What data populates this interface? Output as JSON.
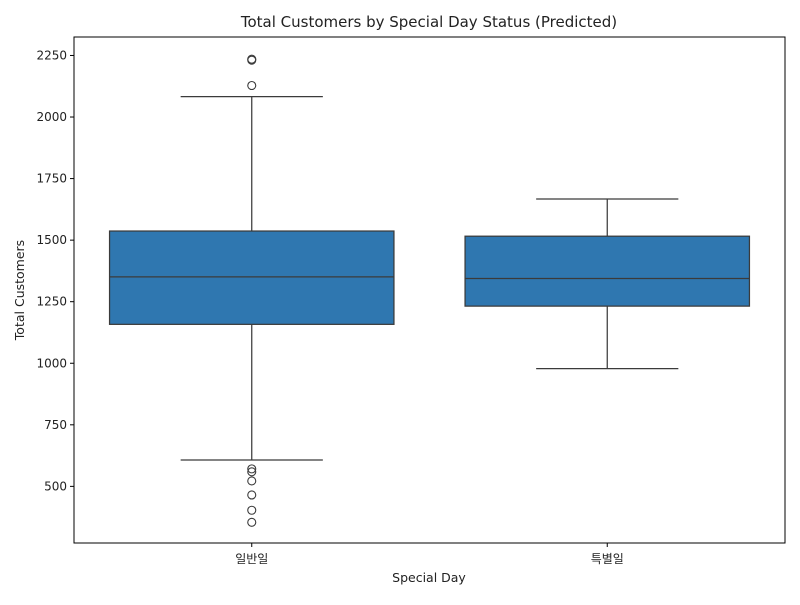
{
  "chart_data": {
    "type": "box",
    "title": "Total Customers by Special Day Status (Predicted)",
    "xlabel": "Special Day",
    "ylabel": "Total Customers",
    "ylim": [
      270,
      2325
    ],
    "yticks": [
      500,
      750,
      1000,
      1250,
      1500,
      1750,
      2000,
      2250
    ],
    "grid": false,
    "legend": "none",
    "box_color": "#2f77b0",
    "line_color": "#3b3b3b",
    "categories": [
      "일반일",
      "특별일"
    ],
    "boxes": [
      {
        "category": "일반일",
        "whisker_low": 607,
        "q1": 1158,
        "median": 1351,
        "q3": 1537,
        "whisker_high": 2083,
        "outliers": [
          2235,
          2231,
          2128,
          571,
          559,
          522,
          465,
          403,
          354
        ]
      },
      {
        "category": "특별일",
        "whisker_low": 978,
        "q1": 1232,
        "median": 1344,
        "q3": 1516,
        "whisker_high": 1667,
        "outliers": []
      }
    ]
  }
}
